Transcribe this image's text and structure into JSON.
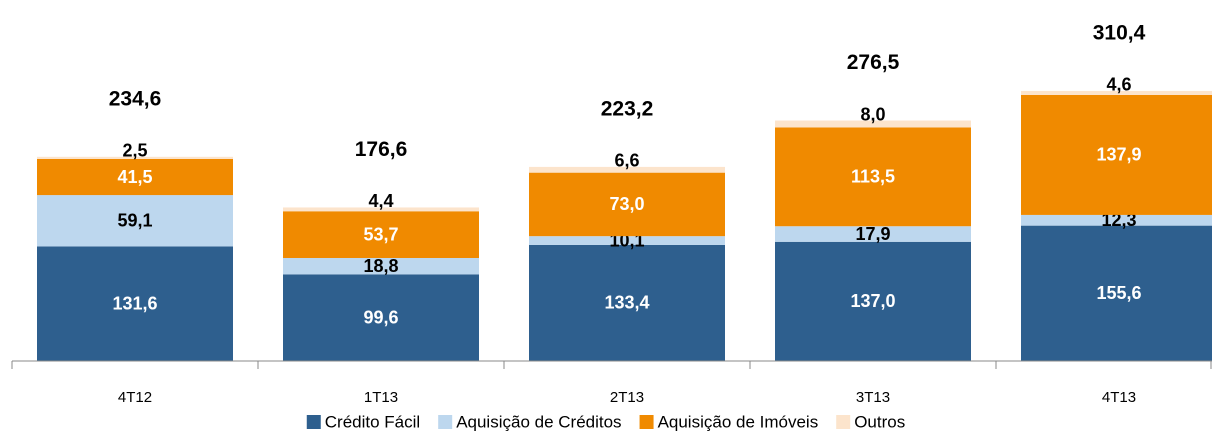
{
  "chart_data": {
    "type": "stacked_bar",
    "categories": [
      "4T12",
      "1T13",
      "2T13",
      "3T13",
      "4T13"
    ],
    "series": [
      {
        "name": "Crédito Fácil",
        "color": "#2e5f8e",
        "label_color": "#ffffff",
        "values": [
          131.6,
          99.6,
          133.4,
          137.0,
          155.6
        ],
        "value_labels": [
          "131,6",
          "99,6",
          "133,4",
          "137,0",
          "155,6"
        ]
      },
      {
        "name": "Aquisição de Créditos",
        "color": "#bdd7ee",
        "label_color": "#000000",
        "values": [
          59.1,
          18.8,
          10.1,
          17.9,
          12.3
        ],
        "value_labels": [
          "59,1",
          "18,8",
          "10,1",
          "17,9",
          "12,3"
        ]
      },
      {
        "name": "Aquisição de Imóveis",
        "color": "#f08a00",
        "label_color": "#ffffff",
        "values": [
          41.5,
          53.7,
          73.0,
          113.5,
          137.9
        ],
        "value_labels": [
          "41,5",
          "53,7",
          "73,0",
          "113,5",
          "137,9"
        ]
      },
      {
        "name": "Outros",
        "color": "#fce4cc",
        "label_color": "#000000",
        "values": [
          2.5,
          4.4,
          6.6,
          8.0,
          4.6
        ],
        "value_labels": [
          "2,5",
          "4,4",
          "6,6",
          "8,0",
          "4,6"
        ]
      }
    ],
    "totals": [
      234.6,
      176.6,
      223.2,
      276.5,
      310.4
    ],
    "total_labels": [
      "234,6",
      "176,6",
      "223,2",
      "276,5",
      "310,4"
    ],
    "legend": "bottom"
  }
}
